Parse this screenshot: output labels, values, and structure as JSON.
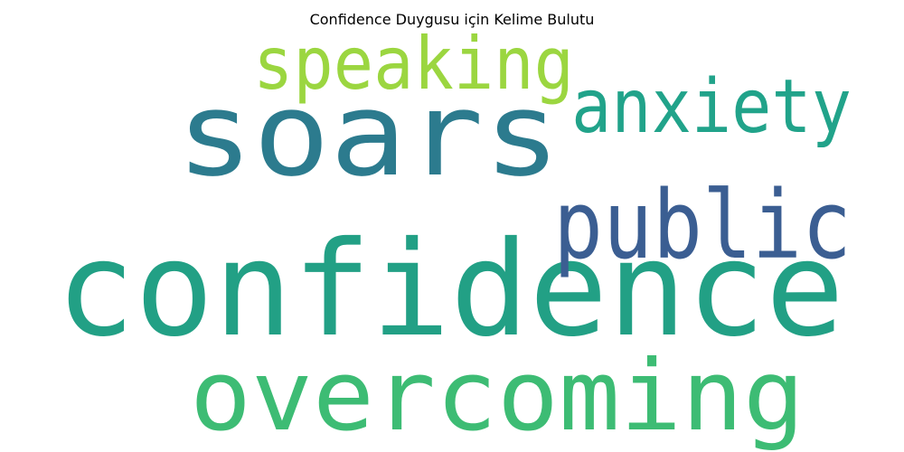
{
  "chart_data": {
    "type": "wordcloud",
    "title": "Confidence Duygusu için Kelime Bulutu",
    "words": [
      {
        "text": "confidence",
        "color": "#22a085"
      },
      {
        "text": "soars",
        "color": "#2c7b8e"
      },
      {
        "text": "overcoming",
        "color": "#3dbc74"
      },
      {
        "text": "public",
        "color": "#3b5e92"
      },
      {
        "text": "anxiety",
        "color": "#21a38a"
      },
      {
        "text": "speaking",
        "color": "#9bd640"
      }
    ]
  }
}
